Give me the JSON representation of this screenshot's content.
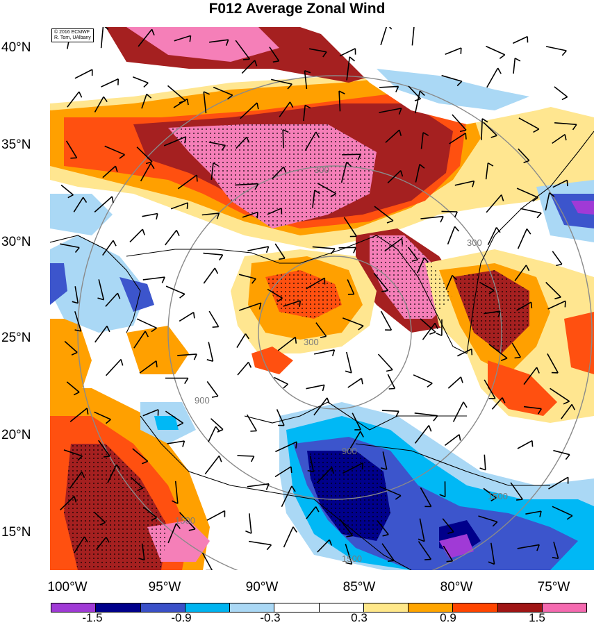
{
  "title": "F012 Average Zonal Wind",
  "credit": {
    "line1": "© 2016 ECMWF",
    "line2": "R. Torn, UAlbany"
  },
  "lat_labels": [
    "40°N",
    "35°N",
    "30°N",
    "25°N",
    "20°N",
    "15°N"
  ],
  "lon_labels": [
    "100°W",
    "95°W",
    "90°W",
    "85°W",
    "80°W",
    "75°W"
  ],
  "range_ring_labels": [
    "300",
    "300",
    "900",
    "900",
    "1500",
    "1500",
    "300",
    "1500"
  ],
  "colorbar": {
    "colors": [
      "#a03ad6",
      "#00008b",
      "#3a50c8",
      "#00b4f0",
      "#aad8f5",
      "#ffffff",
      "#ffffff",
      "#ffe88a",
      "#ffa500",
      "#ff4500",
      "#a01515",
      "#f56ab0"
    ],
    "labels": [
      "-1.5",
      "-0.9",
      "-0.3",
      "0.3",
      "0.9",
      "1.5"
    ]
  },
  "colors": {
    "pink": "#f57fb8",
    "darkred": "#a52020",
    "red": "#ff5010",
    "orange": "#ffa000",
    "yellow": "#ffe690",
    "lightblue": "#aad8f5",
    "cyan": "#00b8f5",
    "blue": "#3c55cc",
    "navy": "#00008b",
    "purple": "#a03ad6"
  }
}
